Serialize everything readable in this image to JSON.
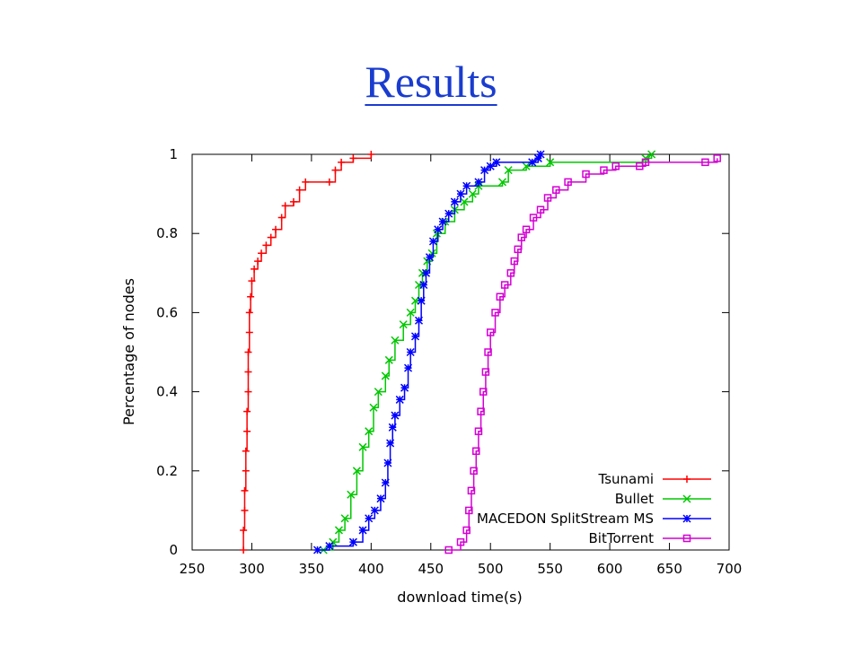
{
  "slide": {
    "title": "Results"
  },
  "chart_data": {
    "type": "line",
    "title": "",
    "xlabel": "download time(s)",
    "ylabel": "Percentage of nodes",
    "xlim": [
      250,
      700
    ],
    "ylim": [
      0,
      1
    ],
    "xticks": [
      250,
      300,
      350,
      400,
      450,
      500,
      550,
      600,
      650,
      700
    ],
    "yticks": [
      0,
      0.2,
      0.4,
      0.6,
      0.8,
      1
    ],
    "xtick_labels": [
      "250",
      "300",
      "350",
      "400",
      "450",
      "500",
      "550",
      "600",
      "650",
      "700"
    ],
    "ytick_labels": [
      "0",
      "0.2",
      "0.4",
      "0.6",
      "0.8",
      "1"
    ],
    "grid": false,
    "legend_position": "bottom-right",
    "series": [
      {
        "name": "Tsunami",
        "color": "#ff0000",
        "marker": "plus",
        "points": [
          [
            293,
            0
          ],
          [
            293,
            0.05
          ],
          [
            294,
            0.1
          ],
          [
            294,
            0.15
          ],
          [
            295,
            0.2
          ],
          [
            295,
            0.25
          ],
          [
            296,
            0.3
          ],
          [
            296,
            0.35
          ],
          [
            297,
            0.4
          ],
          [
            297,
            0.45
          ],
          [
            297,
            0.5
          ],
          [
            298,
            0.55
          ],
          [
            298,
            0.6
          ],
          [
            299,
            0.64
          ],
          [
            300,
            0.68
          ],
          [
            302,
            0.71
          ],
          [
            305,
            0.73
          ],
          [
            308,
            0.75
          ],
          [
            312,
            0.77
          ],
          [
            316,
            0.79
          ],
          [
            320,
            0.81
          ],
          [
            325,
            0.84
          ],
          [
            328,
            0.87
          ],
          [
            335,
            0.88
          ],
          [
            340,
            0.91
          ],
          [
            345,
            0.93
          ],
          [
            365,
            0.93
          ],
          [
            370,
            0.96
          ],
          [
            375,
            0.98
          ],
          [
            385,
            0.99
          ],
          [
            400,
            1.0
          ]
        ]
      },
      {
        "name": "Bullet",
        "color": "#00c800",
        "marker": "x",
        "points": [
          [
            360,
            0
          ],
          [
            368,
            0.02
          ],
          [
            373,
            0.05
          ],
          [
            378,
            0.08
          ],
          [
            383,
            0.14
          ],
          [
            388,
            0.2
          ],
          [
            393,
            0.26
          ],
          [
            398,
            0.3
          ],
          [
            402,
            0.36
          ],
          [
            406,
            0.4
          ],
          [
            412,
            0.44
          ],
          [
            415,
            0.48
          ],
          [
            420,
            0.53
          ],
          [
            427,
            0.57
          ],
          [
            433,
            0.6
          ],
          [
            437,
            0.63
          ],
          [
            440,
            0.67
          ],
          [
            443,
            0.7
          ],
          [
            447,
            0.73
          ],
          [
            451,
            0.75
          ],
          [
            455,
            0.8
          ],
          [
            462,
            0.83
          ],
          [
            470,
            0.86
          ],
          [
            478,
            0.88
          ],
          [
            485,
            0.9
          ],
          [
            490,
            0.92
          ],
          [
            510,
            0.93
          ],
          [
            515,
            0.96
          ],
          [
            530,
            0.97
          ],
          [
            550,
            0.98
          ],
          [
            630,
            0.99
          ],
          [
            635,
            1.0
          ]
        ]
      },
      {
        "name": "MACEDON SplitStream MS",
        "color": "#0000ff",
        "marker": "star",
        "points": [
          [
            355,
            0
          ],
          [
            365,
            0.01
          ],
          [
            385,
            0.02
          ],
          [
            393,
            0.05
          ],
          [
            398,
            0.08
          ],
          [
            403,
            0.1
          ],
          [
            408,
            0.13
          ],
          [
            412,
            0.17
          ],
          [
            414,
            0.22
          ],
          [
            416,
            0.27
          ],
          [
            418,
            0.31
          ],
          [
            420,
            0.34
          ],
          [
            424,
            0.38
          ],
          [
            428,
            0.41
          ],
          [
            431,
            0.46
          ],
          [
            433,
            0.5
          ],
          [
            437,
            0.54
          ],
          [
            440,
            0.58
          ],
          [
            442,
            0.63
          ],
          [
            444,
            0.67
          ],
          [
            446,
            0.7
          ],
          [
            449,
            0.74
          ],
          [
            452,
            0.78
          ],
          [
            456,
            0.81
          ],
          [
            460,
            0.83
          ],
          [
            465,
            0.85
          ],
          [
            470,
            0.88
          ],
          [
            475,
            0.9
          ],
          [
            480,
            0.92
          ],
          [
            490,
            0.93
          ],
          [
            495,
            0.96
          ],
          [
            500,
            0.97
          ],
          [
            505,
            0.98
          ],
          [
            535,
            0.98
          ],
          [
            540,
            0.99
          ],
          [
            542,
            1.0
          ]
        ]
      },
      {
        "name": "BitTorrent",
        "color": "#d400d4",
        "marker": "square",
        "points": [
          [
            465,
            0
          ],
          [
            475,
            0.02
          ],
          [
            480,
            0.05
          ],
          [
            482,
            0.1
          ],
          [
            484,
            0.15
          ],
          [
            486,
            0.2
          ],
          [
            488,
            0.25
          ],
          [
            490,
            0.3
          ],
          [
            492,
            0.35
          ],
          [
            494,
            0.4
          ],
          [
            496,
            0.45
          ],
          [
            498,
            0.5
          ],
          [
            500,
            0.55
          ],
          [
            504,
            0.6
          ],
          [
            508,
            0.64
          ],
          [
            512,
            0.67
          ],
          [
            517,
            0.7
          ],
          [
            520,
            0.73
          ],
          [
            523,
            0.76
          ],
          [
            526,
            0.79
          ],
          [
            530,
            0.81
          ],
          [
            536,
            0.84
          ],
          [
            542,
            0.86
          ],
          [
            548,
            0.89
          ],
          [
            555,
            0.91
          ],
          [
            565,
            0.93
          ],
          [
            580,
            0.95
          ],
          [
            595,
            0.96
          ],
          [
            605,
            0.97
          ],
          [
            625,
            0.97
          ],
          [
            630,
            0.98
          ],
          [
            680,
            0.98
          ],
          [
            690,
            0.99
          ]
        ]
      }
    ]
  }
}
